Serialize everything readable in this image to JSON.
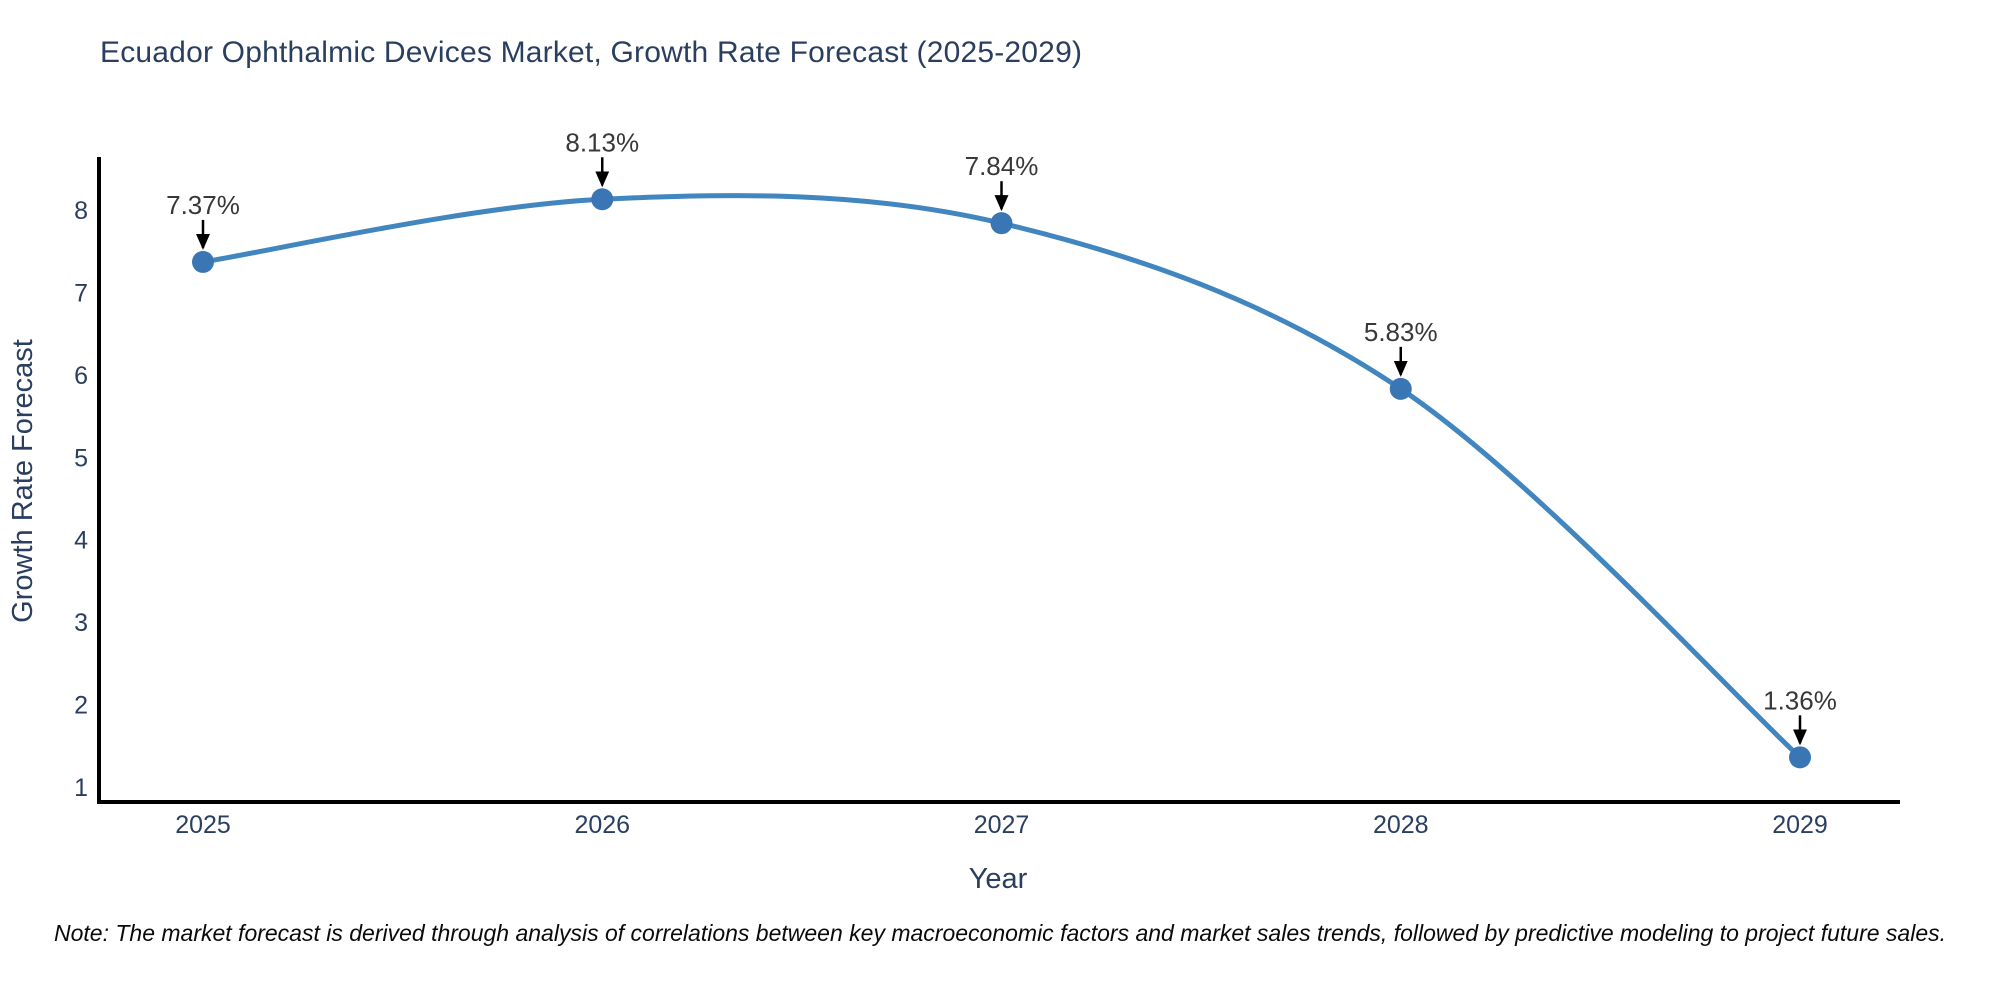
{
  "page": {
    "note": "Note: The market forecast is derived through analysis of correlations between key macroeconomic factors and market sales trends, followed by predictive modeling to project future sales."
  },
  "chart_data": {
    "type": "line",
    "line_shape": "spline",
    "title": "Ecuador Ophthalmic Devices Market, Growth Rate Forecast (2025-2029)",
    "xlabel": "Year",
    "ylabel": "Growth Rate Forecast",
    "categories": [
      "2025",
      "2026",
      "2027",
      "2028",
      "2029"
    ],
    "values": [
      7.37,
      8.13,
      7.84,
      5.83,
      1.36
    ],
    "data_labels": [
      "7.37%",
      "8.13%",
      "7.84%",
      "5.83%",
      "1.36%"
    ],
    "yticks": [
      1,
      2,
      3,
      4,
      5,
      6,
      7,
      8
    ],
    "ylim": [
      0.8,
      8.85
    ],
    "grid": false,
    "legend": false,
    "annotations": "each point labeled with percent value and downward black arrow",
    "colors": {
      "line": "#4286bf",
      "marker": "#3a76b4",
      "axis": "#000000",
      "title_text": "#2a3f5f",
      "tick_text": "#2a3f5f",
      "annotation_text": "#383838",
      "annotation_arrow": "#000000",
      "background": "#ffffff"
    }
  }
}
